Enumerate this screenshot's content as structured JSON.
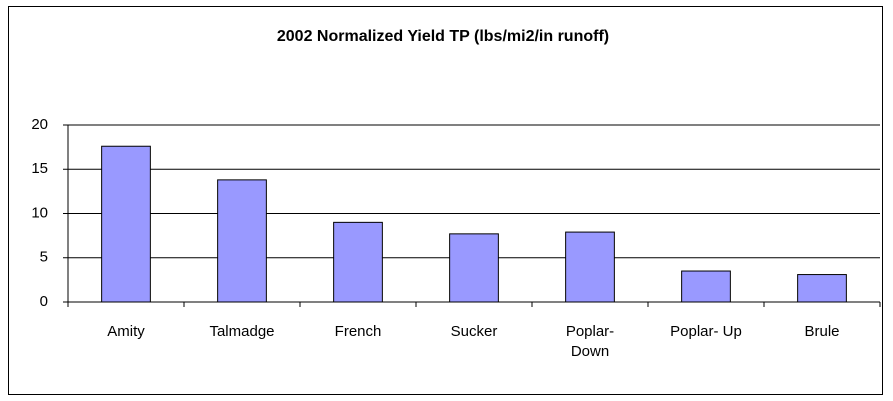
{
  "chart_data": {
    "type": "bar",
    "title": "2002 Normalized Yield TP (lbs/mi2/in runoff)",
    "categories": [
      "Amity",
      "Talmadge",
      "French",
      "Sucker",
      "Poplar-Down",
      "Poplar- Up",
      "Brule"
    ],
    "values": [
      17.6,
      13.8,
      9.0,
      7.7,
      7.9,
      3.5,
      3.1
    ],
    "color": "#9999ff",
    "ylim": [
      0,
      20
    ],
    "yticks": [
      0,
      5,
      10,
      15,
      20
    ],
    "grid": true
  }
}
